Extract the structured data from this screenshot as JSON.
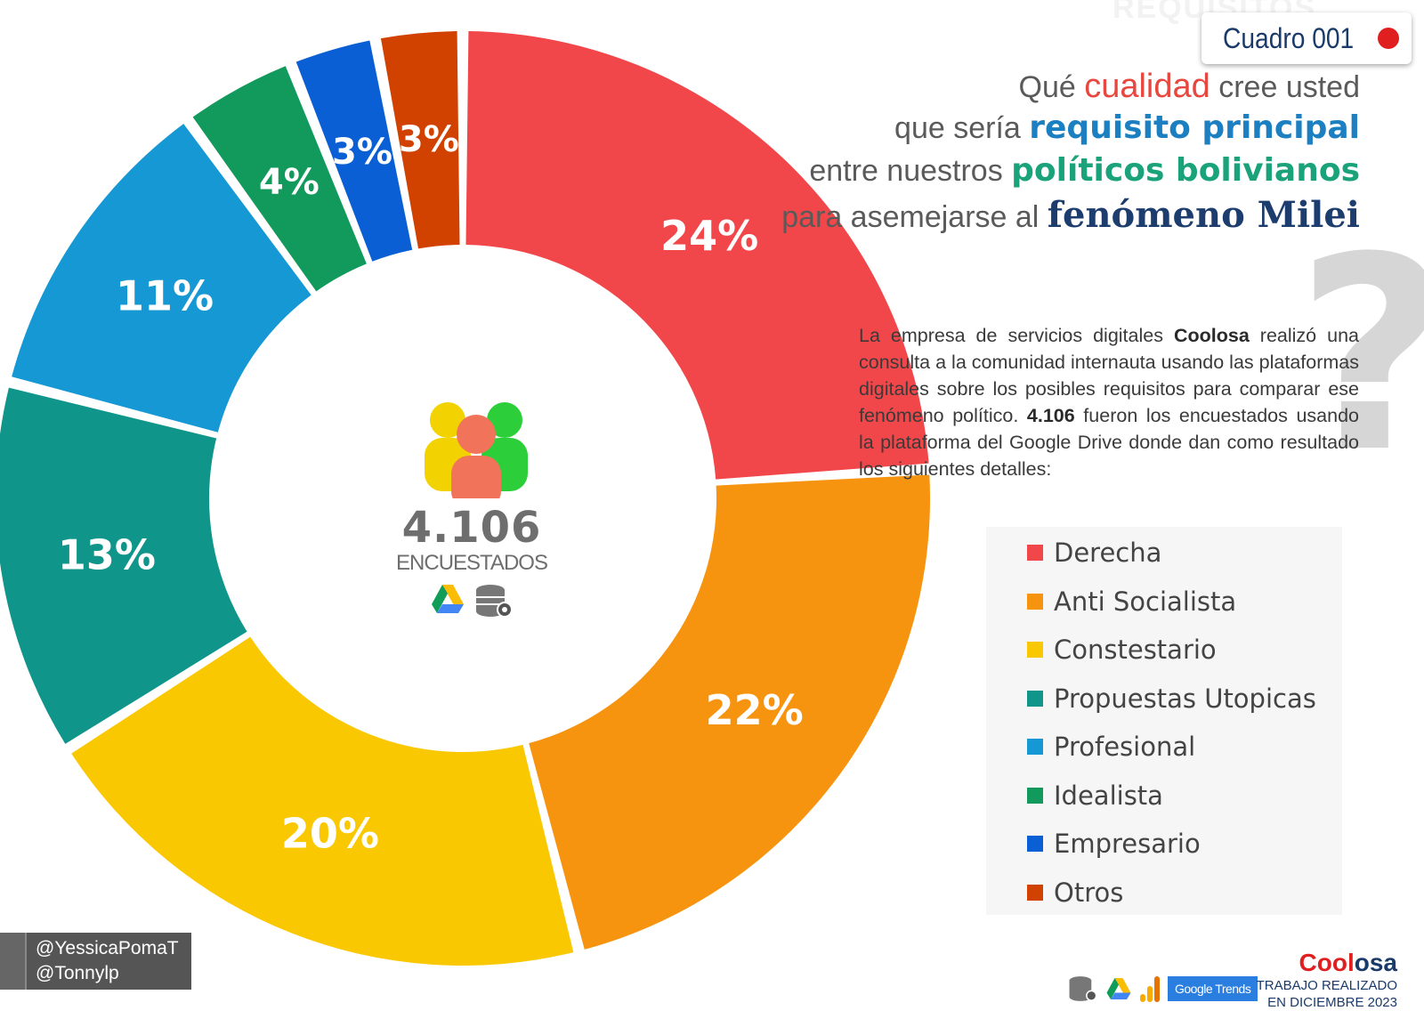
{
  "header": {
    "badge_label": "Cuadro 001",
    "title_lines": [
      [
        "Qué ",
        "cualidad",
        " cree usted"
      ],
      [
        "que sería ",
        "requisito principal"
      ],
      [
        "entre nuestros ",
        "políticos bolivianos"
      ],
      [
        "para asemejarse al ",
        "fenómeno Milei"
      ]
    ]
  },
  "description": {
    "part1": "La empresa de servicios digitales ",
    "brand": "Coolosa",
    "part2": " realizó una consulta a la comunidad internauta usando las plataformas digitales sobre los posibles requisitos para comparar ese fenómeno político. ",
    "count": "4.106",
    "part3": " fueron los encuestados usando la plataforma del Google Drive donde dan como resultado los siguientes detalles:"
  },
  "center": {
    "count": "4.106",
    "label": "ENCUESTADOS"
  },
  "credits": {
    "line1": "@YessicaPomaT",
    "line2": "@Tonnylp"
  },
  "brand": {
    "name_a": "Cool",
    "name_b": "osa",
    "sub1": "TRABAJO REALIZADO",
    "sub2": "EN DICIEMBRE 2023",
    "trends_label": "Google Trends"
  },
  "chart_data": {
    "type": "pie",
    "categories": [
      "Derecha",
      "Anti Socialista",
      "Constestario",
      "Propuestas Utopicas",
      "Profesional",
      "Idealista",
      "Empresario",
      "Otros"
    ],
    "values": [
      24,
      22,
      20,
      13,
      11,
      4,
      3,
      3
    ],
    "labels": [
      "24%",
      "22%",
      "20%",
      "13%",
      "11%",
      "4%",
      "3%",
      "3%"
    ],
    "colors": [
      "#f2474a",
      "#f7940f",
      "#fac800",
      "#0f958a",
      "#1598d3",
      "#119a5c",
      "#0b5fd4",
      "#d14200"
    ],
    "unit": "%",
    "legend_position": "right"
  }
}
